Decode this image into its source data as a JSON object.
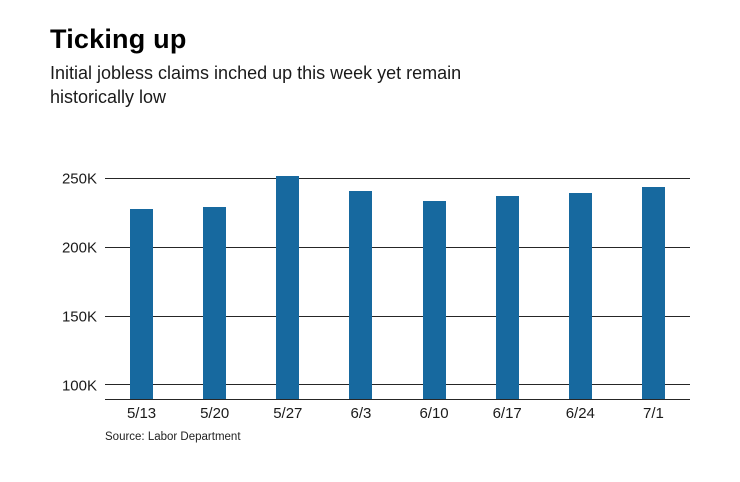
{
  "header": {
    "title": "Ticking up",
    "subtitle": "Initial jobless claims inched up this week yet remain historically low"
  },
  "source_note": "Source: Labor Department",
  "chart_data": {
    "type": "bar",
    "title": "Ticking up",
    "subtitle": "Initial jobless claims inched up this week yet remain historically low",
    "categories": [
      "5/13",
      "5/20",
      "5/27",
      "6/3",
      "6/10",
      "6/17",
      "6/24",
      "7/1"
    ],
    "values": [
      228,
      230,
      252,
      241,
      234,
      238,
      240,
      244
    ],
    "value_unit": "K",
    "yticks": [
      100,
      150,
      200,
      250
    ],
    "ytick_labels": [
      "100K",
      "150K",
      "200K",
      "250K"
    ],
    "ylim": [
      90,
      258
    ],
    "xlabel": "",
    "ylabel": "",
    "grid": true,
    "legend": "none",
    "bar_color": "#17699f",
    "gridline_color": "#262626",
    "source": "Source: Labor Department"
  }
}
